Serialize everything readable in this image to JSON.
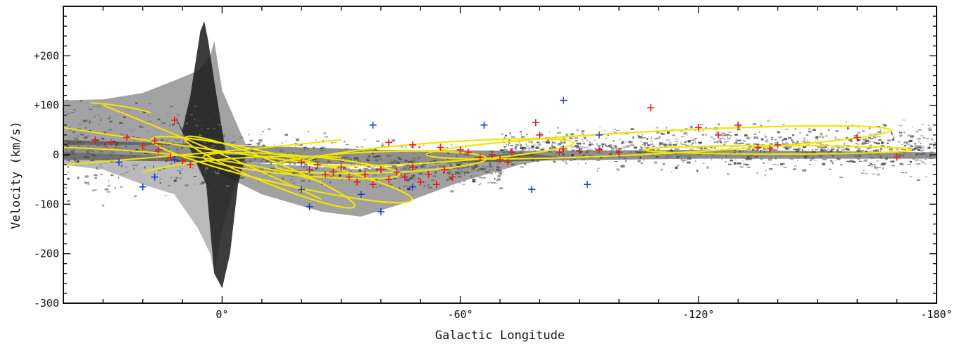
{
  "chart_data": {
    "type": "scatter",
    "title": "",
    "xlabel": "Galactic Longitude",
    "ylabel": "Velocity (km/s)",
    "xlim": [
      40,
      -180
    ],
    "ylim": [
      -300,
      300
    ],
    "x_ticks": [
      {
        "value": 0,
        "label": "0°"
      },
      {
        "value": -60,
        "label": "-60°"
      },
      {
        "value": -120,
        "label": "-120°"
      },
      {
        "value": -180,
        "label": "-180°"
      }
    ],
    "y_ticks": [
      {
        "value": 200,
        "label": "+200"
      },
      {
        "value": 100,
        "label": "+100"
      },
      {
        "value": 0,
        "label": "0"
      },
      {
        "value": -100,
        "label": "-100"
      },
      {
        "value": -200,
        "label": "-200"
      },
      {
        "value": -300,
        "label": "-300"
      }
    ],
    "grid": false,
    "colors": {
      "emission": "#222222",
      "red_marker": "#e41a1c",
      "blue_marker": "#1f3bd6",
      "yellow_curve": "#f2e600"
    },
    "series": [
      {
        "marker": "plus",
        "color": "#e41a1c",
        "points": [
          [
            32,
            30
          ],
          [
            28,
            25
          ],
          [
            24,
            35
          ],
          [
            20,
            18
          ],
          [
            17,
            28
          ],
          [
            12,
            70
          ],
          [
            16,
            10
          ],
          [
            13,
            -5
          ],
          [
            10,
            -12
          ],
          [
            8,
            -20
          ],
          [
            -20,
            -15
          ],
          [
            -22,
            -30
          ],
          [
            -24,
            -20
          ],
          [
            -26,
            -40
          ],
          [
            -28,
            -35
          ],
          [
            -30,
            -25
          ],
          [
            -32,
            -45
          ],
          [
            -34,
            -55
          ],
          [
            -36,
            -40
          ],
          [
            -38,
            -60
          ],
          [
            -40,
            -30
          ],
          [
            -42,
            -50
          ],
          [
            -44,
            -35
          ],
          [
            -46,
            -45
          ],
          [
            -48,
            -25
          ],
          [
            -50,
            -55
          ],
          [
            -52,
            -40
          ],
          [
            -54,
            -60
          ],
          [
            -56,
            -30
          ],
          [
            -58,
            -45
          ],
          [
            -42,
            25
          ],
          [
            -48,
            20
          ],
          [
            -55,
            15
          ],
          [
            -60,
            10
          ],
          [
            -62,
            5
          ],
          [
            -65,
            -5
          ],
          [
            -68,
            0
          ],
          [
            -70,
            -10
          ],
          [
            -72,
            -15
          ],
          [
            -73,
            5
          ],
          [
            -79,
            65
          ],
          [
            -80,
            40
          ],
          [
            -85,
            5
          ],
          [
            -86,
            12
          ],
          [
            -90,
            8
          ],
          [
            -95,
            10
          ],
          [
            -100,
            5
          ],
          [
            -108,
            95
          ],
          [
            -120,
            55
          ],
          [
            -125,
            40
          ],
          [
            -130,
            60
          ],
          [
            -135,
            15
          ],
          [
            -138,
            12
          ],
          [
            -140,
            20
          ],
          [
            -160,
            35
          ],
          [
            -170,
            -5
          ]
        ]
      },
      {
        "marker": "plus",
        "color": "#1f3bd6",
        "points": [
          [
            26,
            -15
          ],
          [
            17,
            -45
          ],
          [
            20,
            -65
          ],
          [
            12,
            -10
          ],
          [
            -20,
            -70
          ],
          [
            -22,
            -105
          ],
          [
            -35,
            -80
          ],
          [
            -38,
            60
          ],
          [
            -40,
            -115
          ],
          [
            -48,
            -65
          ],
          [
            -66,
            60
          ],
          [
            -78,
            -70
          ],
          [
            -86,
            110
          ],
          [
            -92,
            -60
          ],
          [
            -95,
            40
          ]
        ]
      }
    ],
    "curves_note": "Yellow model curves (elliptical loops) overlaid on grey emission"
  }
}
